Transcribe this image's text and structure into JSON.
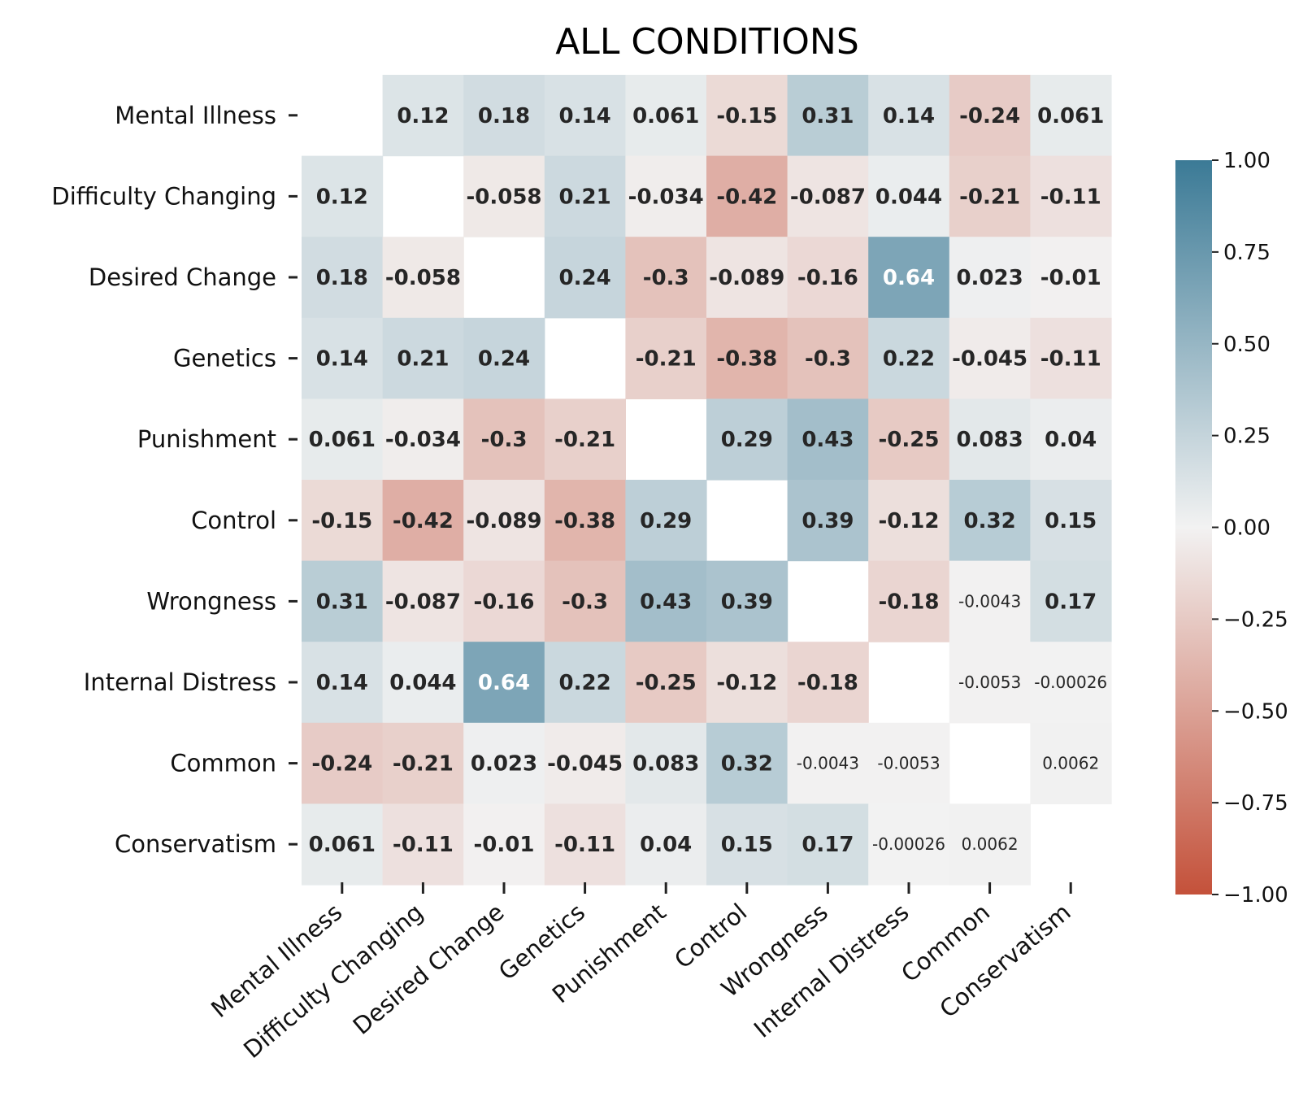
{
  "chart_data": {
    "type": "heatmap",
    "title": "ALL CONDITIONS",
    "xlabel": "",
    "ylabel": "",
    "labels": [
      "Mental Illness",
      "Difficulty Changing",
      "Desired Change",
      "Genetics",
      "Punishment",
      "Control",
      "Wrongness",
      "Internal Distress",
      "Common",
      "Conservatism"
    ],
    "matrix": [
      [
        null,
        0.12,
        0.18,
        0.14,
        0.061,
        -0.15,
        0.31,
        0.14,
        -0.24,
        0.061
      ],
      [
        0.12,
        null,
        -0.058,
        0.21,
        -0.034,
        -0.42,
        -0.087,
        0.044,
        -0.21,
        -0.11
      ],
      [
        0.18,
        -0.058,
        null,
        0.24,
        -0.3,
        -0.089,
        -0.16,
        0.64,
        0.023,
        -0.01
      ],
      [
        0.14,
        0.21,
        0.24,
        null,
        -0.21,
        -0.38,
        -0.3,
        0.22,
        -0.045,
        -0.11
      ],
      [
        0.061,
        -0.034,
        -0.3,
        -0.21,
        null,
        0.29,
        0.43,
        -0.25,
        0.083,
        0.04
      ],
      [
        -0.15,
        -0.42,
        -0.089,
        -0.38,
        0.29,
        null,
        0.39,
        -0.12,
        0.32,
        0.15
      ],
      [
        0.31,
        -0.087,
        -0.16,
        -0.3,
        0.43,
        0.39,
        null,
        -0.18,
        -0.0043,
        0.17
      ],
      [
        0.14,
        0.044,
        0.64,
        0.22,
        -0.25,
        -0.12,
        -0.18,
        null,
        -0.0053,
        -0.00026
      ],
      [
        -0.24,
        -0.21,
        0.023,
        -0.045,
        0.083,
        0.32,
        -0.0043,
        -0.0053,
        null,
        0.0062
      ],
      [
        0.061,
        -0.11,
        -0.01,
        -0.11,
        0.04,
        0.15,
        0.17,
        -0.00026,
        0.0062,
        null
      ]
    ],
    "cell_labels": [
      [
        "",
        "0.12",
        "0.18",
        "0.14",
        "0.061",
        "-0.15",
        "0.31",
        "0.14",
        "-0.24",
        "0.061"
      ],
      [
        "0.12",
        "",
        "-0.058",
        "0.21",
        "-0.034",
        "-0.42",
        "-0.087",
        "0.044",
        "-0.21",
        "-0.11"
      ],
      [
        "0.18",
        "-0.058",
        "",
        "0.24",
        "-0.3",
        "-0.089",
        "-0.16",
        "0.64",
        "0.023",
        "-0.01"
      ],
      [
        "0.14",
        "0.21",
        "0.24",
        "",
        "-0.21",
        "-0.38",
        "-0.3",
        "0.22",
        "-0.045",
        "-0.11"
      ],
      [
        "0.061",
        "-0.034",
        "-0.3",
        "-0.21",
        "",
        "0.29",
        "0.43",
        "-0.25",
        "0.083",
        "0.04"
      ],
      [
        "-0.15",
        "-0.42",
        "-0.089",
        "-0.38",
        "0.29",
        "",
        "0.39",
        "-0.12",
        "0.32",
        "0.15"
      ],
      [
        "0.31",
        "-0.087",
        "-0.16",
        "-0.3",
        "0.43",
        "0.39",
        "",
        "-0.18",
        "-0.0043",
        "0.17"
      ],
      [
        "0.14",
        "0.044",
        "0.64",
        "0.22",
        "-0.25",
        "-0.12",
        "-0.18",
        "",
        "-0.0053",
        "-0.00026"
      ],
      [
        "-0.24",
        "-0.21",
        "0.023",
        "-0.045",
        "0.083",
        "0.32",
        "-0.0043",
        "-0.0053",
        "",
        "0.0062"
      ],
      [
        "0.061",
        "-0.11",
        "-0.01",
        "-0.11",
        "0.04",
        "0.15",
        "0.17",
        "-0.00026",
        "0.0062",
        ""
      ]
    ],
    "value_range": [
      -1.0,
      1.0
    ],
    "colorbar": {
      "ticks": [
        "1.00",
        "0.75",
        "0.50",
        "0.25",
        "0.00",
        "−0.25",
        "−0.50",
        "−0.75",
        "−1.00"
      ],
      "low_color": "#c4513a",
      "mid_color": "#f2f2f2",
      "high_color": "#3b7a96"
    },
    "diagonal_masked": true,
    "grid": false,
    "legend": "right"
  }
}
